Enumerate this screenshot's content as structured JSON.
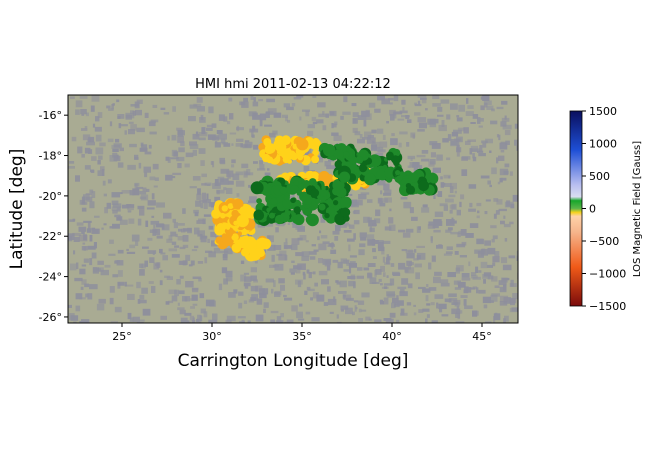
{
  "chart_data": {
    "type": "heatmap",
    "title": "HMI hmi 2011-02-13 04:22:12",
    "xlabel": "Carrington Longitude [deg]",
    "ylabel": "Latitude [deg]",
    "xlim": [
      22,
      47
    ],
    "ylim": [
      -26.3,
      -15
    ],
    "x_ticks": [
      25,
      30,
      35,
      40,
      45
    ],
    "x_tick_labels": [
      "25°",
      "30°",
      "35°",
      "40°",
      "45°"
    ],
    "y_ticks": [
      -16,
      -18,
      -20,
      -22,
      -24,
      -26
    ],
    "y_tick_labels": [
      "-16°",
      "-18°",
      "-20°",
      "-22°",
      "-24°",
      "-26°"
    ],
    "grid": false,
    "colorbar": {
      "label": "LOS Magnetic Field [Gauss]",
      "range": [
        -1500,
        1500
      ],
      "ticks": [
        1500,
        1000,
        500,
        0,
        -500,
        -1000,
        -1500
      ],
      "tick_labels": [
        "1500",
        "1000",
        "500",
        "0",
        "−500",
        "−1000",
        "−1500"
      ],
      "placement": "right"
    },
    "colors": {
      "quiet_light": "#a9ab93",
      "quiet_dark": "#8e8f9c",
      "positive_weak": "#1f8a2a",
      "positive_strong": "#0d6b1c",
      "negative_weak": "#ffd21a",
      "negative_strong": "#f5a81c"
    },
    "regions": [
      {
        "polarity": "negative",
        "field": -350,
        "lon": [
          32.8,
          35.8
        ],
        "lat": [
          -18.3,
          -17.2
        ]
      },
      {
        "polarity": "negative",
        "field": -250,
        "lon": [
          33.8,
          37.2
        ],
        "lat": [
          -19.7,
          -19.0
        ]
      },
      {
        "polarity": "negative",
        "field": -300,
        "lon": [
          37.2,
          38.6
        ],
        "lat": [
          -19.5,
          -18.6
        ]
      },
      {
        "polarity": "negative",
        "field": -350,
        "lon": [
          30.2,
          32.2
        ],
        "lat": [
          -22.6,
          -20.4
        ]
      },
      {
        "polarity": "negative",
        "field": -200,
        "lon": [
          31.8,
          33.0
        ],
        "lat": [
          -23.0,
          -22.2
        ]
      },
      {
        "polarity": "positive",
        "field": 250,
        "lon": [
          32.5,
          37.5
        ],
        "lat": [
          -21.2,
          -19.3
        ]
      },
      {
        "polarity": "positive",
        "field": 300,
        "lon": [
          37.0,
          40.5
        ],
        "lat": [
          -19.2,
          -17.8
        ]
      },
      {
        "polarity": "positive",
        "field": 200,
        "lon": [
          36.2,
          37.8
        ],
        "lat": [
          -18.1,
          -17.6
        ]
      },
      {
        "polarity": "positive",
        "field": 150,
        "lon": [
          40.3,
          42.3
        ],
        "lat": [
          -19.8,
          -18.8
        ]
      }
    ]
  }
}
